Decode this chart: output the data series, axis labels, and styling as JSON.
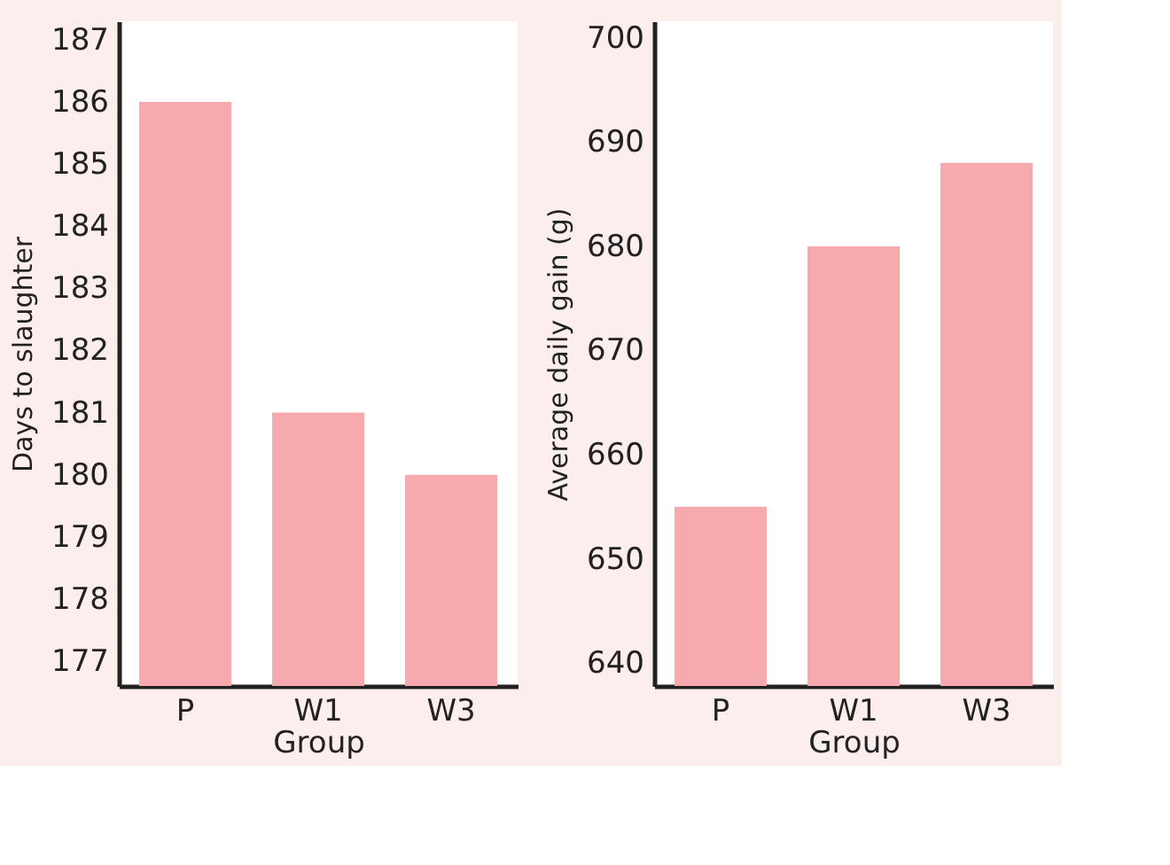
{
  "chart_data": [
    {
      "type": "bar",
      "categories": [
        "P",
        "W1",
        "W3"
      ],
      "values": [
        186,
        181,
        180
      ],
      "color": "#f6aaad",
      "xlabel": "Group",
      "ylabel": "Days to slaughter",
      "ylim": [
        176.6,
        187.3
      ],
      "yticks": [
        177,
        178,
        179,
        180,
        181,
        182,
        183,
        184,
        185,
        186,
        187
      ],
      "grid": false,
      "legend": false
    },
    {
      "type": "bar",
      "categories": [
        "P",
        "W1",
        "W3"
      ],
      "values": [
        655,
        680,
        688
      ],
      "color": "#f6aaad",
      "xlabel": "Group",
      "ylabel": "Average daily gain (g)",
      "ylim": [
        637.8,
        701.6
      ],
      "yticks": [
        640,
        650,
        660,
        670,
        680,
        690,
        700
      ],
      "grid": false,
      "legend": false
    }
  ]
}
